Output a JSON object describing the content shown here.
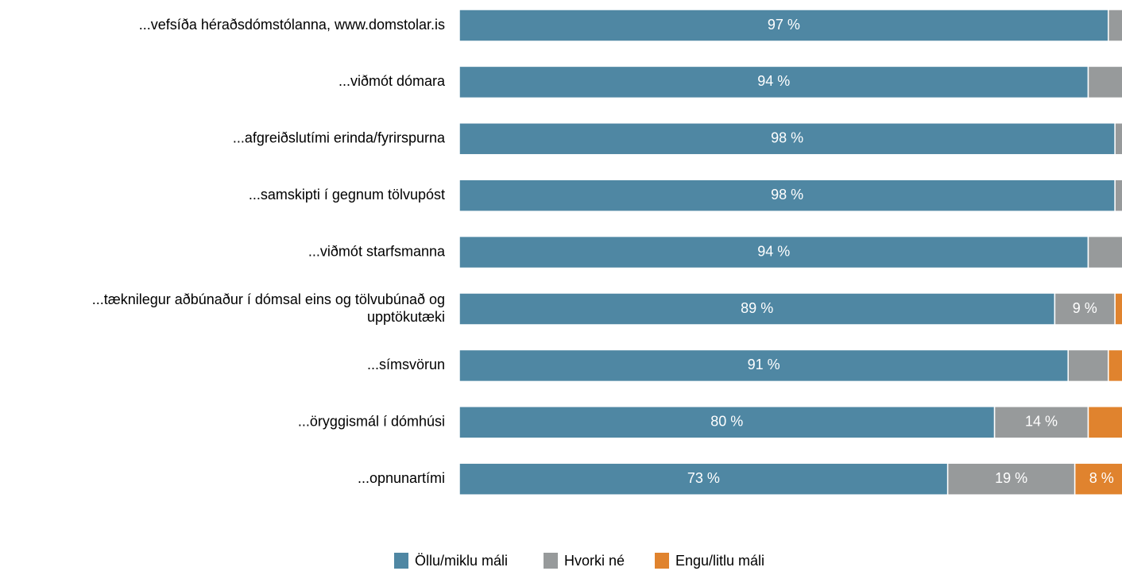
{
  "chart_data": {
    "type": "stacked-barh",
    "categories": [
      "...vefsíða héraðsdómstólanna, www.domstolar.is",
      "...viðmót dómara",
      "...afgreiðslutími erinda/fyrirspurna",
      "...samskipti í gegnum tölvupóst",
      "...viðmót starfsmanna",
      "...tæknilegur aðbúnaður í dómsal eins og tölvubúnað og\nupptökutæki",
      "...símsvörun",
      "...öryggismál í dómhúsi",
      "...opnunartími"
    ],
    "series": [
      {
        "name": "Öllu/miklu máli",
        "color": "#4f87a3",
        "values": [
          97,
          94,
          98,
          98,
          94,
          89,
          91,
          80,
          73
        ],
        "value_labels": [
          "97 %",
          "94 %",
          "98 %",
          "98 %",
          "94 %",
          "89 %",
          "91 %",
          "80 %",
          "73 %"
        ]
      },
      {
        "name": "Hvorki né",
        "color": "#979a9b",
        "values": [
          3,
          6,
          2,
          2,
          6,
          9,
          6,
          14,
          19
        ],
        "value_labels": [
          null,
          null,
          null,
          null,
          null,
          "9 %",
          null,
          "14 %",
          "19 %"
        ]
      },
      {
        "name": "Engu/litlu máli",
        "color": "#e0832e",
        "values": [
          0,
          0,
          0,
          0,
          0,
          2,
          3,
          6,
          8
        ],
        "value_labels": [
          null,
          null,
          null,
          null,
          null,
          null,
          null,
          null,
          "8 %"
        ]
      }
    ],
    "xlim": [
      0,
      100
    ]
  }
}
